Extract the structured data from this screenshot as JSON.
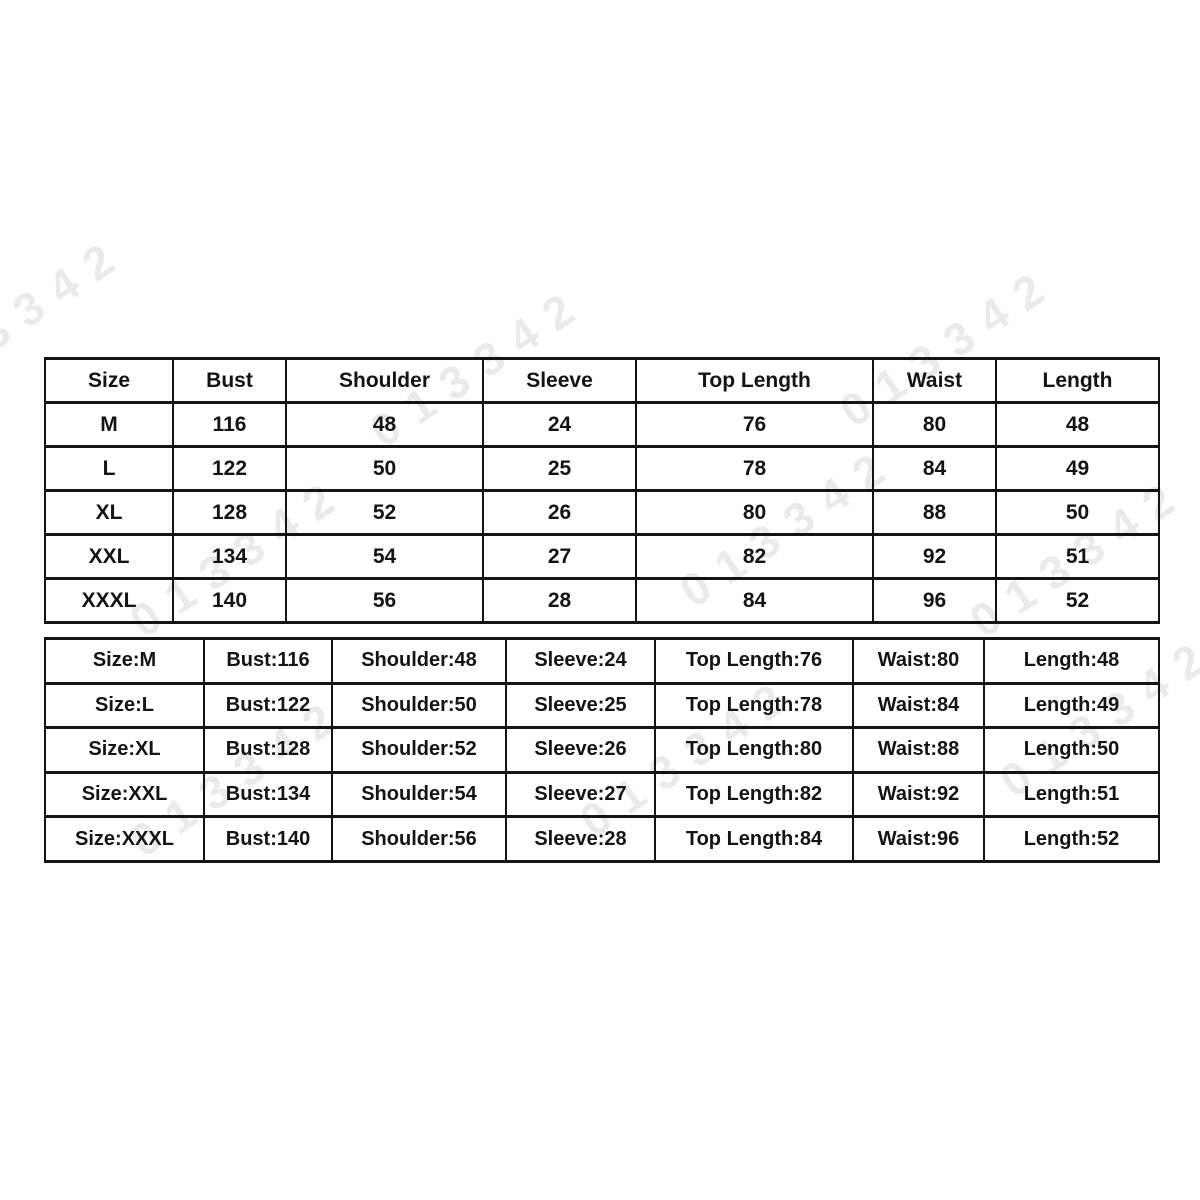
{
  "watermark": {
    "text": "013342",
    "color": "#000000"
  },
  "chart_data": [
    {
      "type": "table",
      "title": "Garment size chart (grid form)",
      "columns": [
        "Size",
        "Bust",
        "Shoulder",
        "Sleeve",
        "Top Length",
        "Waist",
        "Length"
      ],
      "rows": [
        [
          "M",
          "116",
          "48",
          "24",
          "76",
          "80",
          "48"
        ],
        [
          "L",
          "122",
          "50",
          "25",
          "78",
          "84",
          "49"
        ],
        [
          "XL",
          "128",
          "52",
          "26",
          "80",
          "88",
          "50"
        ],
        [
          "XXL",
          "134",
          "54",
          "27",
          "82",
          "92",
          "51"
        ],
        [
          "XXXL",
          "140",
          "56",
          "28",
          "84",
          "96",
          "52"
        ]
      ]
    },
    {
      "type": "table",
      "title": "Garment size chart (label:value form)",
      "columns": [],
      "rows": [
        [
          "Size:M",
          "Bust:116",
          "Shoulder:48",
          "Sleeve:24",
          "Top Length:76",
          "Waist:80",
          "Length:48"
        ],
        [
          "Size:L",
          "Bust:122",
          "Shoulder:50",
          "Sleeve:25",
          "Top Length:78",
          "Waist:84",
          "Length:49"
        ],
        [
          "Size:XL",
          "Bust:128",
          "Shoulder:52",
          "Sleeve:26",
          "Top Length:80",
          "Waist:88",
          "Length:50"
        ],
        [
          "Size:XXL",
          "Bust:134",
          "Shoulder:54",
          "Sleeve:27",
          "Top Length:82",
          "Waist:92",
          "Length:51"
        ],
        [
          "Size:XXXL",
          "Bust:140",
          "Shoulder:56",
          "Sleeve:28",
          "Top Length:84",
          "Waist:96",
          "Length:52"
        ]
      ]
    }
  ]
}
